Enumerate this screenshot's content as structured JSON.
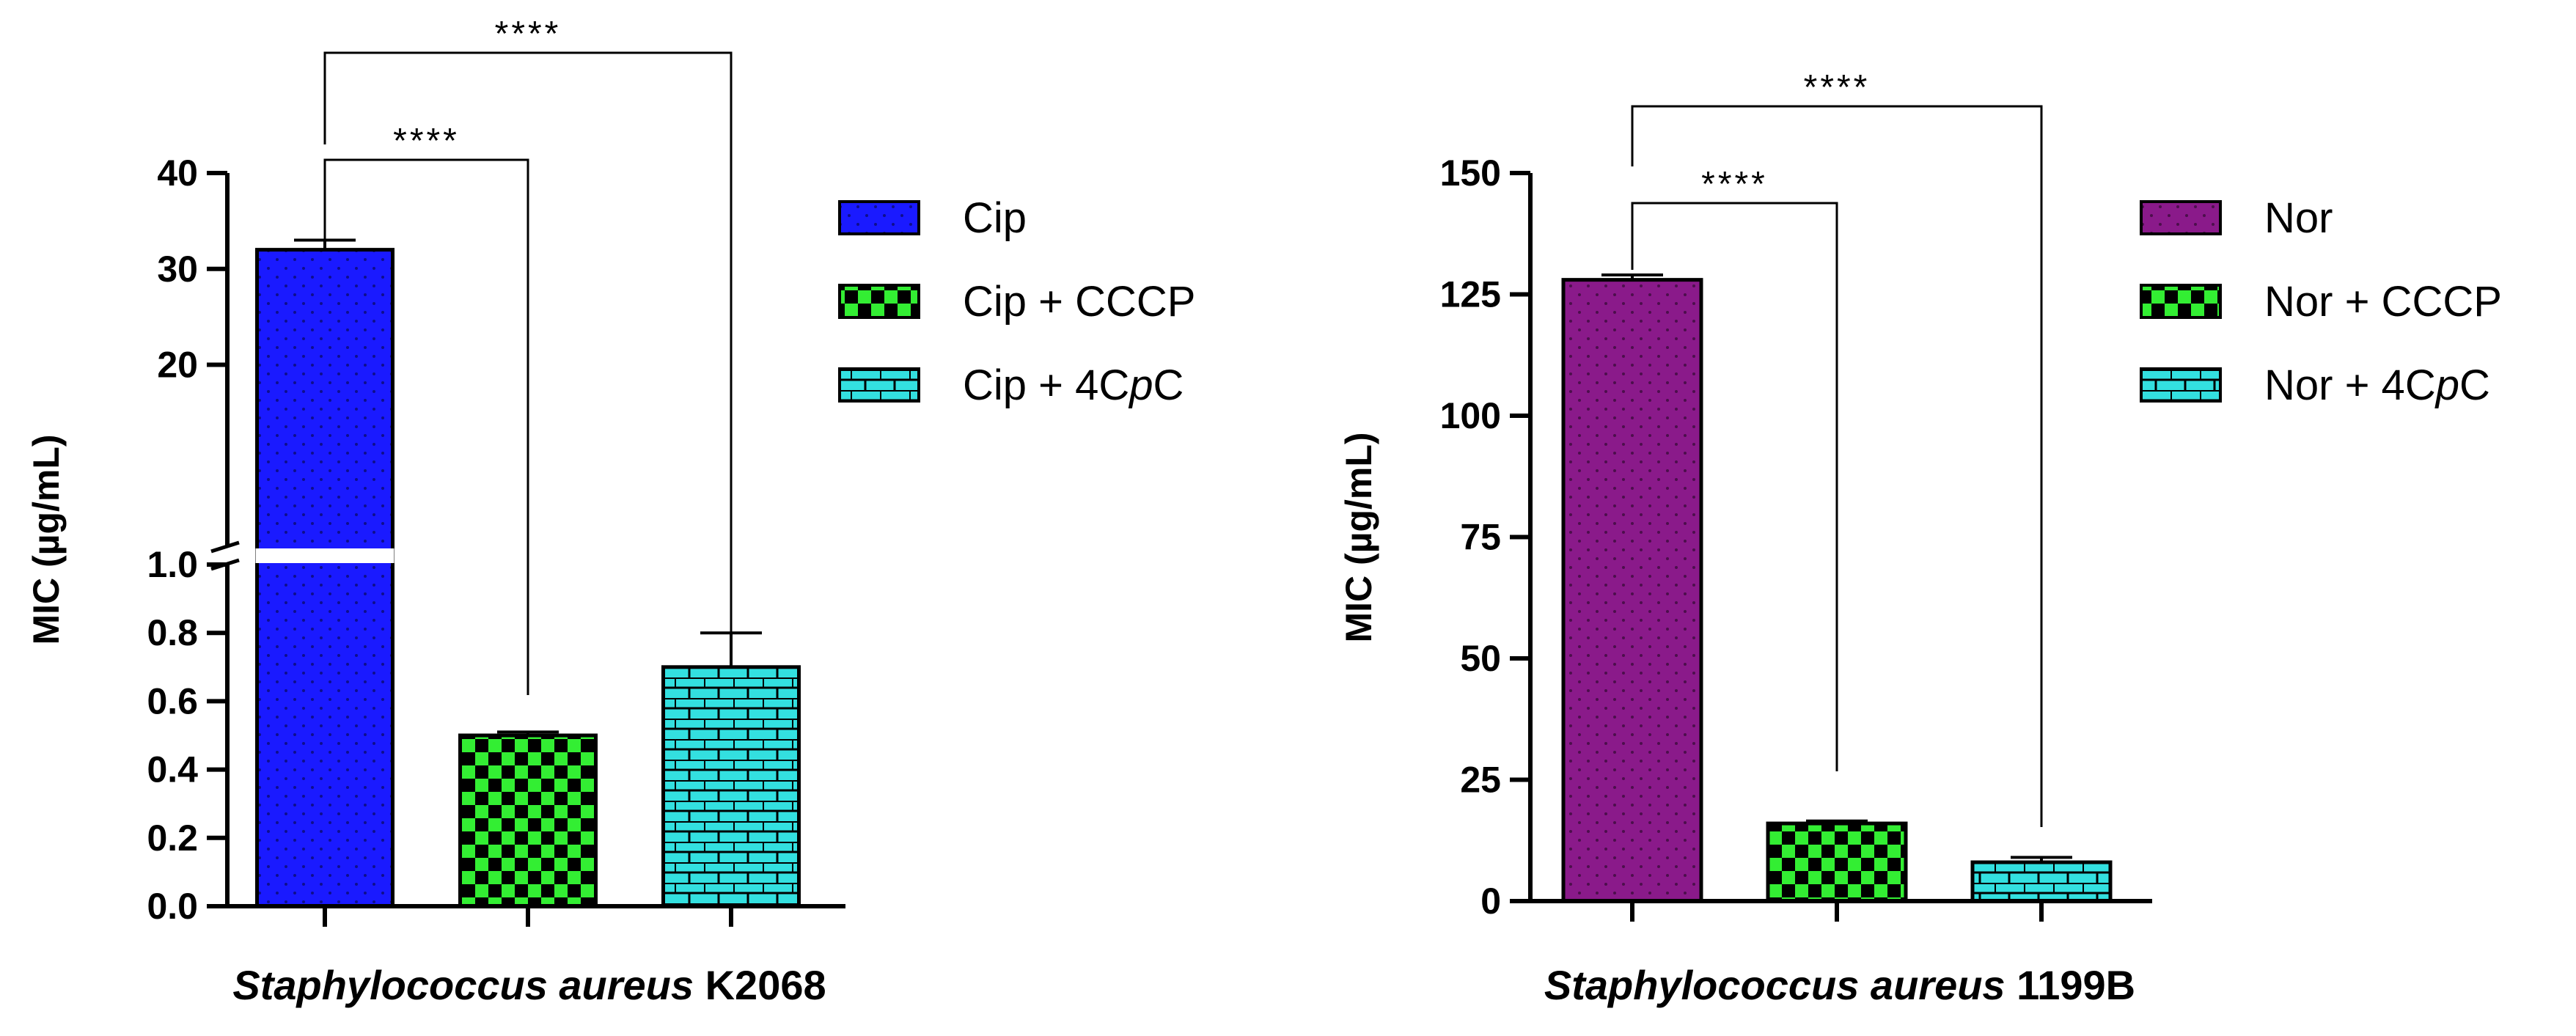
{
  "chart_data": [
    {
      "type": "bar",
      "title": "",
      "xlabel_italic": "Staphylococcus aureus",
      "xlabel_strain": "K2068",
      "ylabel": "MIC (µg/mL)",
      "axis_break": {
        "lower_range": [
          0,
          1.0
        ],
        "upper_range": [
          1.0,
          40
        ],
        "lower_ticks": [
          "0.0",
          "0.2",
          "0.4",
          "0.6",
          "0.8",
          "1.0"
        ],
        "upper_ticks": [
          "20",
          "30",
          "40"
        ]
      },
      "categories": [
        "Cip",
        "Cip + CCCP",
        "Cip + 4CpC"
      ],
      "legend_labels": [
        {
          "pre": "Cip",
          "ital": "",
          "post": ""
        },
        {
          "pre": "Cip + CCCP",
          "ital": "",
          "post": ""
        },
        {
          "pre": "Cip + 4C",
          "ital": "p",
          "post": "C"
        }
      ],
      "values": [
        32,
        0.5,
        0.7
      ],
      "errors": [
        1.0,
        0.01,
        0.1
      ],
      "colors": [
        "#1a1aff",
        "#33ee33",
        "#33e0e0"
      ],
      "patterns": [
        "dots",
        "checker",
        "bricks"
      ],
      "significance": [
        {
          "from": 0,
          "to": 1,
          "label": "****"
        },
        {
          "from": 0,
          "to": 2,
          "label": "****"
        }
      ]
    },
    {
      "type": "bar",
      "title": "",
      "xlabel_italic": "Staphylococcus aureus",
      "xlabel_strain": "1199B",
      "ylabel": "MIC (µg/mL)",
      "ylim": [
        0,
        150
      ],
      "yticks": [
        "0",
        "25",
        "50",
        "75",
        "100",
        "125",
        "150"
      ],
      "categories": [
        "Nor",
        "Nor + CCCP",
        "Nor + 4CpC"
      ],
      "legend_labels": [
        {
          "pre": "Nor",
          "ital": "",
          "post": ""
        },
        {
          "pre": "Nor + CCCP",
          "ital": "",
          "post": ""
        },
        {
          "pre": "Nor + 4C",
          "ital": "p",
          "post": "C"
        }
      ],
      "values": [
        128,
        16,
        8
      ],
      "errors": [
        1.0,
        0.5,
        1.0
      ],
      "colors": [
        "#8a1a8a",
        "#33ee33",
        "#33e0e0"
      ],
      "patterns": [
        "dots",
        "checker",
        "bricks"
      ],
      "significance": [
        {
          "from": 0,
          "to": 1,
          "label": "****"
        },
        {
          "from": 0,
          "to": 2,
          "label": "****"
        }
      ]
    }
  ]
}
